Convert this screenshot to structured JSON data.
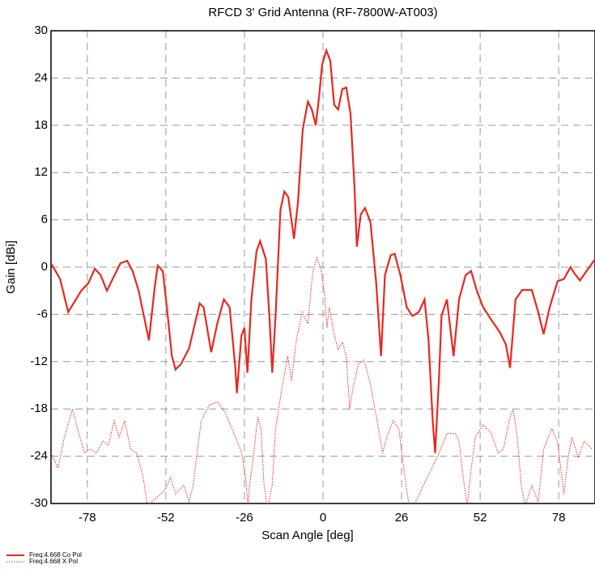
{
  "chart_data": {
    "type": "line",
    "title": "RFCD 3' Grid Antenna (RF-7800W-AT003)",
    "x_label": "Scan Angle [deg]",
    "y_label": "Gain [dBi]",
    "xlim": [
      -90,
      90
    ],
    "ylim": [
      -30,
      30
    ],
    "xticks": [
      -78,
      -52,
      -26,
      0,
      26,
      52,
      78
    ],
    "yticks": [
      -30,
      -24,
      -18,
      -12,
      -6,
      0,
      6,
      12,
      18,
      24,
      30
    ],
    "grid": true,
    "series": [
      {
        "name": "Freq:4.668  Co Pol",
        "color": "#e8281e",
        "style": "solid",
        "x": [
          -90,
          -87,
          -84.3,
          -80,
          -77.6,
          -75.5,
          -73.6,
          -71.5,
          -69.6,
          -67,
          -64.8,
          -63,
          -61,
          -59,
          -57.6,
          -55.7,
          -54.7,
          -53,
          -51.5,
          -50,
          -48.8,
          -47,
          -44.3,
          -40.8,
          -39.5,
          -37,
          -35,
          -32.8,
          -30.9,
          -29,
          -28.5,
          -27,
          -26,
          -25,
          -23.7,
          -22,
          -20.8,
          -18.9,
          -17.6,
          -16.8,
          -15.7,
          -14.1,
          -12.8,
          -11.5,
          -9.6,
          -8.3,
          -6.7,
          -5,
          -3.7,
          -2.4,
          -1.3,
          -0.3,
          1.1,
          2.4,
          3.7,
          5,
          6.4,
          7.7,
          9.1,
          10.4,
          11.2,
          12.5,
          13.9,
          15.7,
          17.6,
          19.2,
          20.5,
          22.4,
          23.7,
          25.6,
          27.7,
          29.6,
          31.7,
          33.6,
          34.9,
          36.3,
          37.1,
          38.4,
          39.2,
          41,
          43.2,
          45,
          47.2,
          49,
          50.9,
          53,
          55.7,
          58.4,
          60.5,
          61.9,
          63.7,
          65.9,
          69.1,
          71.2,
          73,
          75,
          77.6,
          79.7,
          81.9,
          83.2,
          85,
          87.2,
          90
        ],
        "values": [
          0.5,
          -1.5,
          -5.7,
          -3,
          -2,
          -0.2,
          -1,
          -3,
          -1.5,
          0.5,
          0.8,
          -0.5,
          -3,
          -6.7,
          -9.3,
          -2.6,
          0.2,
          -0.5,
          -5.7,
          -11.3,
          -13,
          -12.3,
          -10.3,
          -4.6,
          -5.1,
          -10.8,
          -7.2,
          -4.1,
          -5.1,
          -12.8,
          -16,
          -8.7,
          -7.7,
          -13.4,
          -4.1,
          2,
          3.3,
          1,
          -7.2,
          -13.4,
          -6.2,
          7.2,
          9.6,
          8.9,
          3.6,
          8.2,
          17.5,
          21,
          20,
          18,
          21.6,
          25.7,
          27.5,
          26.2,
          20.6,
          20,
          22.6,
          22.8,
          19.5,
          10.3,
          2.6,
          6.7,
          7.5,
          5.7,
          -2,
          -11.3,
          -1,
          1.5,
          1.7,
          -1,
          -5.1,
          -6.2,
          -5.7,
          -4.1,
          -9.2,
          -19.5,
          -23.6,
          -13.9,
          -6.2,
          -4.1,
          -11.3,
          -4.1,
          -1,
          -0.5,
          -3,
          -5.1,
          -6.7,
          -8.2,
          -9.8,
          -12.8,
          -4.1,
          -2.9,
          -2.9,
          -5.7,
          -8.5,
          -5.1,
          -1.8,
          -1.5,
          0,
          -0.8,
          -1.7,
          -0.5,
          1
        ]
      },
      {
        "name": "Freq:4.668  X Pol",
        "color": "#e8281e",
        "style": "dotted",
        "x": [
          -90,
          -87.7,
          -85.6,
          -82.9,
          -80.8,
          -78.9,
          -77.1,
          -75,
          -72.8,
          -71,
          -69.1,
          -67.5,
          -65.6,
          -63.7,
          -61.6,
          -59.5,
          -58.1,
          -52.3,
          -50.4,
          -48.8,
          -46.1,
          -44.3,
          -43,
          -40.3,
          -37.6,
          -34.9,
          -32.3,
          -29.6,
          -26.9,
          -25.6,
          -24.8,
          -24.3,
          -22.9,
          -21.6,
          -20.5,
          -19.5,
          -18.4,
          -16.8,
          -15.7,
          -13.6,
          -11.7,
          -10.4,
          -8.8,
          -6.9,
          -5,
          -3.5,
          -2.1,
          -0.8,
          0.5,
          1.3,
          2.1,
          3.5,
          5,
          6.4,
          7.7,
          8.8,
          9.9,
          11.7,
          13.6,
          15.7,
          17.9,
          19.7,
          21.1,
          23.2,
          25.1,
          26.4,
          28.3,
          29.6,
          38.4,
          41,
          43.7,
          45,
          46.4,
          47.7,
          49,
          50.4,
          53,
          55.7,
          57.9,
          59.7,
          61.6,
          62.9,
          64.3,
          65.6,
          66.9,
          69.1,
          71.2,
          73,
          75.7,
          77.6,
          79.7,
          81.1,
          82.4,
          84.5,
          86.4,
          89
        ],
        "values": [
          -23.6,
          -25.5,
          -21.6,
          -18,
          -21.1,
          -23.6,
          -23.1,
          -23.6,
          -22.1,
          -22.6,
          -19.5,
          -21.6,
          -19.5,
          -23.1,
          -23.6,
          -26.7,
          -30.3,
          -28.3,
          -26.7,
          -28.8,
          -27.7,
          -29.8,
          -27.7,
          -19.5,
          -17.5,
          -17.1,
          -18.5,
          -21,
          -23.6,
          -26.7,
          -30.3,
          -27.7,
          -23.6,
          -19,
          -20.6,
          -27.7,
          -30.6,
          -27.7,
          -20.5,
          -15.4,
          -11.3,
          -14.4,
          -9.2,
          -5.7,
          -7.2,
          -1,
          1.2,
          0,
          -3.3,
          -7.7,
          -5.1,
          -8.2,
          -10.5,
          -9.5,
          -11.3,
          -18,
          -15.4,
          -12.3,
          -11.8,
          -14.9,
          -19.5,
          -23.6,
          -21.6,
          -19.5,
          -20.5,
          -24.7,
          -29.8,
          -30.6,
          -23.6,
          -21.1,
          -21.1,
          -22.1,
          -26.7,
          -30.3,
          -25.7,
          -21.6,
          -20,
          -21.1,
          -23.6,
          -23.1,
          -19.5,
          -18,
          -21.6,
          -27.7,
          -30.3,
          -27.7,
          -29.8,
          -23.1,
          -20.5,
          -22.1,
          -28.8,
          -24.2,
          -21.6,
          -24.2,
          -22.1,
          -23.1
        ]
      }
    ]
  }
}
